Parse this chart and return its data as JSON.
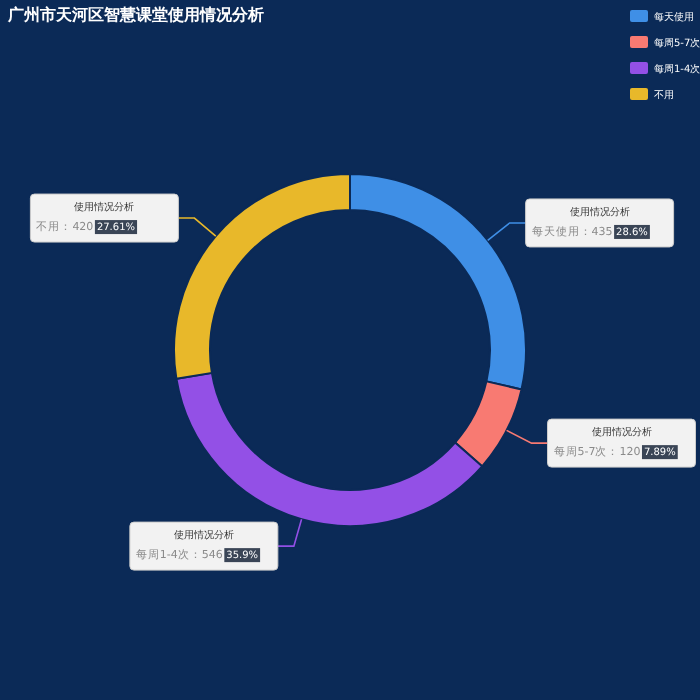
{
  "chart_data": {
    "type": "donut",
    "title": "广州市天河区智慧课堂使用情况分析",
    "categories": [
      "每天使用",
      "每周5-7次",
      "每周1-4次",
      "不用"
    ],
    "values": [
      435,
      120,
      546,
      420
    ],
    "colors": [
      "#3f8fe6",
      "#f87a72",
      "#9350e6",
      "#e8b82a"
    ],
    "value_labels": [
      "：435 28.6%",
      "：120 7.89%",
      "：546 35.9%",
      "：420 27.61%"
    ],
    "annotations": [
      "使用情况分析",
      "使用情况分析",
      "使用情况分析",
      "使用情况分析"
    ],
    "legend": "top right"
  }
}
